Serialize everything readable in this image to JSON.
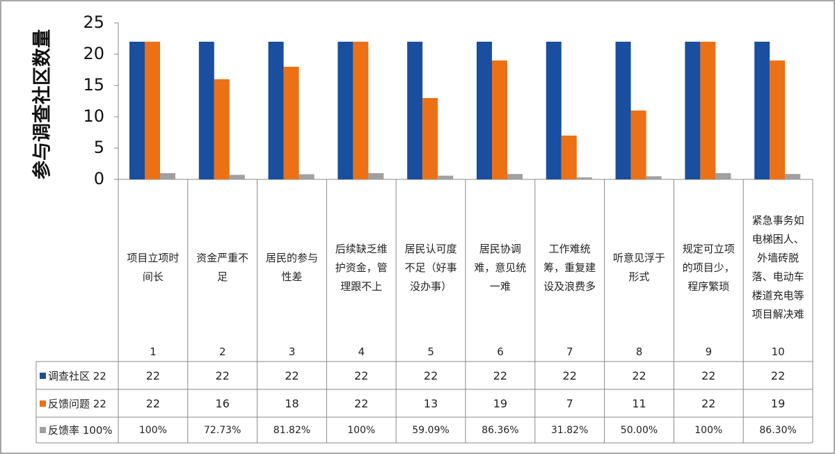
{
  "chart_data": {
    "type": "bar",
    "y_label": "参与调查社区数量",
    "categories": [
      "1",
      "2",
      "3",
      "4",
      "5",
      "6",
      "7",
      "8",
      "9",
      "10"
    ],
    "category_descriptions": [
      "项目立项时间长",
      "资金严重不足",
      "居民的参与性差",
      "后续缺乏维护资金，管理跟不上",
      "居民认可度不足（好事没办事）",
      "居民协调难，意见统一难",
      "工作难统筹，重复建设及浪费多",
      "听意见浮于形式",
      "规定可立项的项目少，程序繁琐",
      "紧急事务如电梯困人、外墙砖脱落、电动车楼道充电等项目解决难"
    ],
    "series": [
      {
        "name": "调查社区 22",
        "color": "#1a4e9e",
        "values": [
          22,
          22,
          22,
          22,
          22,
          22,
          22,
          22,
          22,
          22
        ]
      },
      {
        "name": "反馈问题 22",
        "color": "#ec7015",
        "values": [
          22,
          16,
          18,
          22,
          13,
          19,
          7,
          11,
          22,
          19
        ]
      },
      {
        "name": "反馈率 100%",
        "color": "#a0a0a0",
        "values": [
          1,
          0.7273,
          0.8182,
          1,
          0.5909,
          0.8636,
          0.3182,
          0.5,
          1,
          0.863
        ],
        "value_labels": [
          "100%",
          "72.73%",
          "81.82%",
          "100%",
          "59.09%",
          "86.36%",
          "31.82%",
          "50.00%",
          "100%",
          "86.30%"
        ]
      }
    ],
    "ylim": [
      0,
      25
    ],
    "yticks": [
      0,
      5,
      10,
      15,
      20,
      25
    ]
  }
}
